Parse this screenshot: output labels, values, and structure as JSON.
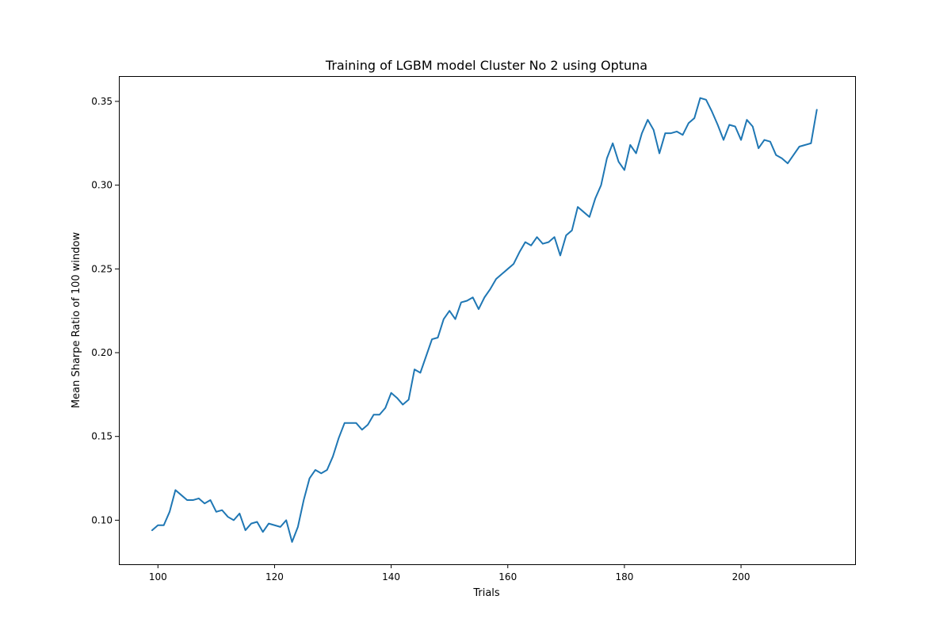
{
  "chart_data": {
    "type": "line",
    "title": "Training of LGBM model Cluster No 2 using Optuna",
    "xlabel": "Trials",
    "ylabel": "Mean Sharpe Ratio of 100 window",
    "xlim": [
      93.3,
      219.7
    ],
    "ylim": [
      0.0737,
      0.3651
    ],
    "xticks": [
      100,
      120,
      140,
      160,
      180,
      200
    ],
    "xtick_labels": [
      "100",
      "120",
      "140",
      "160",
      "180",
      "200"
    ],
    "yticks": [
      0.1,
      0.15,
      0.2,
      0.25,
      0.3,
      0.35
    ],
    "ytick_labels": [
      "0.10",
      "0.15",
      "0.20",
      "0.25",
      "0.30",
      "0.35"
    ],
    "grid": false,
    "series": [
      {
        "color": "#1f77b4",
        "x": [
          99,
          100,
          101,
          102,
          103,
          104,
          105,
          106,
          107,
          108,
          109,
          110,
          111,
          112,
          113,
          114,
          115,
          116,
          117,
          118,
          119,
          120,
          121,
          122,
          123,
          124,
          125,
          126,
          127,
          128,
          129,
          130,
          131,
          132,
          133,
          134,
          135,
          136,
          137,
          138,
          139,
          140,
          141,
          142,
          143,
          144,
          145,
          146,
          147,
          148,
          149,
          150,
          151,
          152,
          153,
          154,
          155,
          156,
          157,
          158,
          159,
          160,
          161,
          162,
          163,
          164,
          165,
          166,
          167,
          168,
          169,
          170,
          171,
          172,
          173,
          174,
          175,
          176,
          177,
          178,
          179,
          180,
          181,
          182,
          183,
          184,
          185,
          186,
          187,
          188,
          189,
          190,
          191,
          192,
          193,
          194,
          195,
          196,
          197,
          198,
          199,
          200,
          201,
          202,
          203,
          204,
          205,
          206,
          207,
          208,
          209,
          210,
          211,
          212,
          213
        ],
        "y": [
          0.094,
          0.097,
          0.097,
          0.105,
          0.118,
          0.115,
          0.112,
          0.112,
          0.113,
          0.11,
          0.112,
          0.105,
          0.106,
          0.102,
          0.1,
          0.104,
          0.094,
          0.098,
          0.099,
          0.093,
          0.098,
          0.097,
          0.096,
          0.1,
          0.087,
          0.096,
          0.112,
          0.125,
          0.13,
          0.128,
          0.13,
          0.138,
          0.149,
          0.158,
          0.158,
          0.158,
          0.154,
          0.157,
          0.163,
          0.163,
          0.167,
          0.176,
          0.173,
          0.169,
          0.172,
          0.19,
          0.188,
          0.198,
          0.208,
          0.209,
          0.22,
          0.225,
          0.22,
          0.23,
          0.231,
          0.233,
          0.226,
          0.233,
          0.238,
          0.244,
          0.247,
          0.25,
          0.253,
          0.26,
          0.266,
          0.264,
          0.269,
          0.265,
          0.266,
          0.269,
          0.258,
          0.27,
          0.273,
          0.287,
          0.284,
          0.281,
          0.292,
          0.3,
          0.316,
          0.325,
          0.314,
          0.309,
          0.324,
          0.319,
          0.331,
          0.339,
          0.333,
          0.319,
          0.331,
          0.331,
          0.332,
          0.33,
          0.337,
          0.34,
          0.352,
          0.351,
          0.344,
          0.336,
          0.327,
          0.336,
          0.335,
          0.327,
          0.339,
          0.335,
          0.322,
          0.327,
          0.326,
          0.318,
          0.316,
          0.313,
          0.318,
          0.323,
          0.324,
          0.325,
          0.345
        ]
      }
    ]
  }
}
